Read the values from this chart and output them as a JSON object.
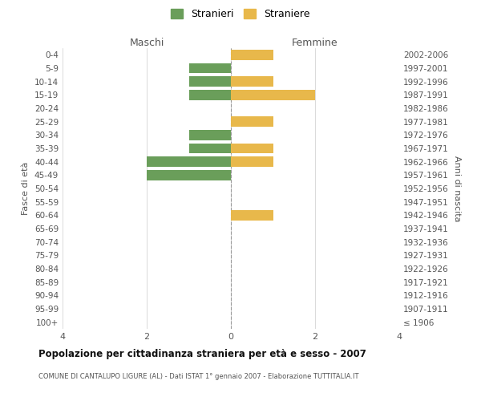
{
  "age_groups": [
    "100+",
    "95-99",
    "90-94",
    "85-89",
    "80-84",
    "75-79",
    "70-74",
    "65-69",
    "60-64",
    "55-59",
    "50-54",
    "45-49",
    "40-44",
    "35-39",
    "30-34",
    "25-29",
    "20-24",
    "15-19",
    "10-14",
    "5-9",
    "0-4"
  ],
  "birth_years": [
    "≤ 1906",
    "1907-1911",
    "1912-1916",
    "1917-1921",
    "1922-1926",
    "1927-1931",
    "1932-1936",
    "1937-1941",
    "1942-1946",
    "1947-1951",
    "1952-1956",
    "1957-1961",
    "1962-1966",
    "1967-1971",
    "1972-1976",
    "1977-1981",
    "1982-1986",
    "1987-1991",
    "1992-1996",
    "1997-2001",
    "2002-2006"
  ],
  "maschi": [
    0,
    0,
    0,
    0,
    0,
    0,
    0,
    0,
    0,
    0,
    0,
    2,
    2,
    1,
    1,
    0,
    0,
    1,
    1,
    1,
    0
  ],
  "femmine": [
    0,
    0,
    0,
    0,
    0,
    0,
    0,
    0,
    1,
    0,
    0,
    0,
    1,
    1,
    0,
    1,
    0,
    2,
    1,
    0,
    1
  ],
  "color_maschi": "#6a9e5a",
  "color_femmine": "#e8b84b",
  "xlim": 4,
  "title": "Popolazione per cittadinanza straniera per età e sesso - 2007",
  "subtitle": "COMUNE DI CANTALUPO LIGURE (AL) - Dati ISTAT 1° gennaio 2007 - Elaborazione TUTTITALIA.IT",
  "ylabel_left": "Fasce di età",
  "ylabel_right": "Anni di nascita",
  "xlabel_maschi": "Maschi",
  "xlabel_femmine": "Femmine",
  "legend_maschi": "Stranieri",
  "legend_femmine": "Straniere",
  "grid_color": "#cccccc",
  "bg_color": "#ffffff",
  "bar_height": 0.75
}
